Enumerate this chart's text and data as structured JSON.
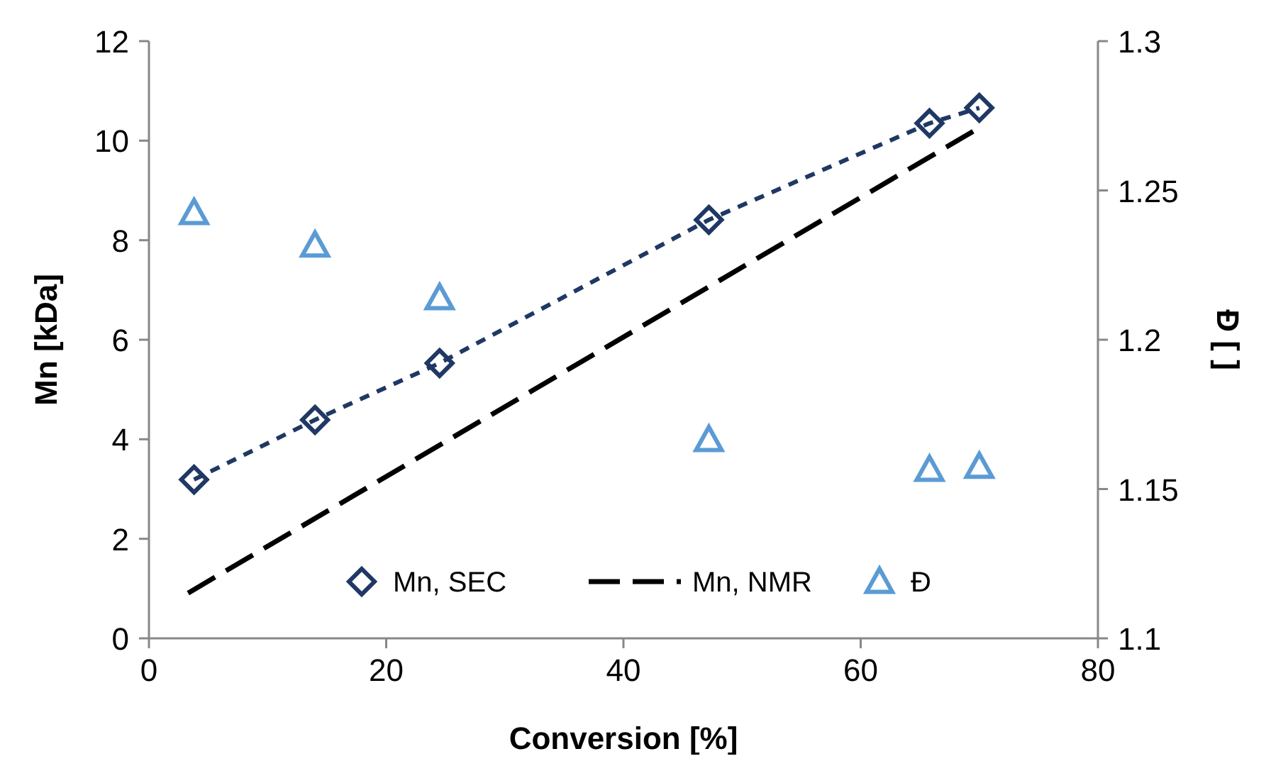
{
  "chart_data": {
    "type": "scatter",
    "xlabel": "Conversion [%]",
    "ylabel": "Mn [kDa]",
    "y2label": "Đ [ ]",
    "xlim": [
      0,
      80
    ],
    "xticks": [
      0,
      20,
      40,
      60,
      80
    ],
    "ylim": [
      0,
      12
    ],
    "yticks": [
      0,
      2,
      4,
      6,
      8,
      10,
      12
    ],
    "y2lim": [
      1.1,
      1.3
    ],
    "y2ticks": [
      1.1,
      1.15,
      1.2,
      1.25,
      1.3
    ],
    "grid": false,
    "legend": "bottom",
    "series": [
      {
        "name": "Mn, SEC",
        "type": "scatter",
        "marker": "diamond",
        "color": "#1f3864",
        "x": [
          3.8,
          14.0,
          24.5,
          47.2,
          65.8,
          70.0
        ],
        "values": [
          3.19,
          4.39,
          5.53,
          8.41,
          10.35,
          10.66
        ]
      },
      {
        "type": "line",
        "marker": "none",
        "line_style": "dashed",
        "color": "#1f3864",
        "x": [
          3.8,
          14.0,
          24.5,
          47.2,
          65.8,
          70.0
        ],
        "values": [
          3.19,
          4.39,
          5.53,
          8.41,
          10.35,
          10.66
        ]
      },
      {
        "name": "Mn, NMR",
        "type": "line",
        "marker": "none",
        "line_style": "dashed",
        "color": "#000000",
        "x": [
          3.3,
          70.0
        ],
        "values": [
          0.91,
          10.26
        ]
      },
      {
        "name": "Đ",
        "type": "scatter",
        "marker": "triangle",
        "axis": "y2",
        "color": "#5b9bd5",
        "x": [
          3.8,
          14.0,
          24.5,
          47.2,
          65.8,
          70.0
        ],
        "values": [
          1.2425,
          1.2316,
          1.214,
          1.1665,
          1.1565,
          1.1575
        ]
      }
    ]
  }
}
